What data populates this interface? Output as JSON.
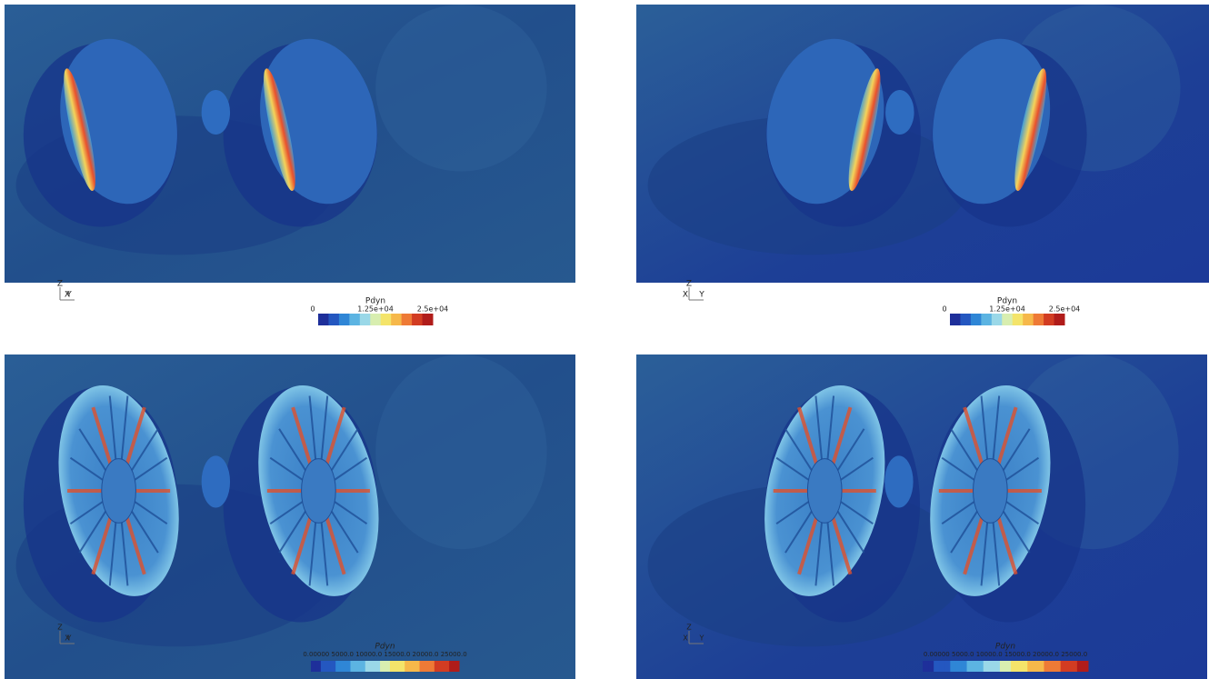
{
  "panels": [
    {
      "colorbar": {
        "title": "Pdyn",
        "labels": [
          "0",
          "1.25e+04",
          "2.5e+04"
        ]
      },
      "axes": [
        "Z",
        "X",
        "Y"
      ]
    },
    {
      "colorbar": {
        "title": "Pdyn",
        "labels": [
          "0",
          "1.25e+04",
          "2.5e+04"
        ]
      },
      "axes": [
        "Z",
        "X",
        "Y"
      ]
    },
    {
      "colorbar": {
        "title": "Pdyn",
        "labels": [
          "0.00000 5000.0 10000.0 15000.0 20000.0 25000.0"
        ]
      },
      "axes": [
        "Z",
        "X",
        "Y"
      ]
    },
    {
      "colorbar": {
        "title": "Pdyn",
        "labels": [
          "0.00000 5000.0 10000.0 15000.0 20000.0 25000.0"
        ]
      },
      "axes": [
        "Z",
        "X",
        "Y"
      ]
    }
  ]
}
